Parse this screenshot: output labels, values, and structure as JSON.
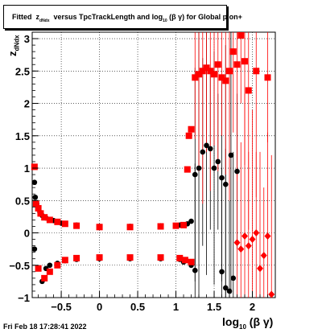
{
  "title": {
    "prefix": "Fitted",
    "var": "z",
    "var_sub": "dNdx",
    "middle": "versus TpcTrackLength and log",
    "log_sub": "10",
    "suffix": "(β γ) for Global pion+"
  },
  "ylabel": {
    "var": "z",
    "sub": "dNdx"
  },
  "xlabel": {
    "main": "log",
    "sub": "10",
    "rest": "(β γ)"
  },
  "datestamp": "Fri Feb 18 17:28:41 2022",
  "chart_data": {
    "type": "scatter",
    "xlim": [
      -0.88,
      2.3
    ],
    "ylim": [
      -1.0,
      3.1
    ],
    "x_ticks": [
      -0.5,
      0,
      0.5,
      1,
      1.5,
      2
    ],
    "x_tick_labels": [
      "−0.5",
      "0",
      "0.5",
      "1",
      "1.5",
      "2"
    ],
    "y_ticks": [
      -1,
      -0.5,
      0,
      0.5,
      1,
      1.5,
      2,
      2.5,
      3
    ],
    "y_tick_labels": [
      "−1",
      "−0.5",
      "0",
      "0.5",
      "1",
      "1.5",
      "2",
      "2.5",
      "3"
    ],
    "grid": true,
    "series": [
      {
        "color": "#000000",
        "marker": "circle",
        "points": [
          [
            -0.85,
            0.78
          ],
          [
            -0.84,
            0.55
          ],
          [
            -0.82,
            0.45
          ],
          [
            -0.8,
            0.38
          ],
          [
            -0.78,
            0.32
          ],
          [
            -0.75,
            0.27
          ],
          [
            -0.7,
            0.23
          ],
          [
            -0.6,
            0.19
          ],
          [
            -0.5,
            0.15
          ],
          [
            -0.3,
            0.12
          ],
          [
            0.0,
            0.1
          ],
          [
            0.4,
            0.1
          ],
          [
            0.8,
            0.11
          ],
          [
            1.05,
            0.12
          ],
          [
            1.15,
            0.14
          ],
          [
            1.2,
            0.18
          ],
          [
            1.25,
            0.9
          ],
          [
            1.3,
            1.0
          ],
          [
            1.35,
            1.25
          ],
          [
            1.4,
            1.35
          ],
          [
            1.45,
            1.3
          ],
          [
            1.5,
            1.0
          ],
          [
            1.55,
            1.1
          ],
          [
            1.6,
            0.85
          ],
          [
            1.65,
            0.75
          ],
          [
            1.72,
            1.2
          ],
          [
            1.8,
            0.95
          ],
          [
            -0.85,
            -0.25
          ],
          [
            -0.75,
            -0.75
          ],
          [
            -0.7,
            -0.55
          ],
          [
            -0.65,
            -0.5
          ],
          [
            -0.55,
            -0.47
          ],
          [
            -0.45,
            -0.43
          ],
          [
            -0.3,
            -0.41
          ],
          [
            0.0,
            -0.4
          ],
          [
            0.4,
            -0.4
          ],
          [
            0.8,
            -0.4
          ],
          [
            1.05,
            -0.41
          ],
          [
            1.1,
            -0.45
          ],
          [
            1.2,
            -0.5
          ],
          [
            1.25,
            -0.58
          ],
          [
            1.6,
            -0.6
          ],
          [
            1.65,
            -0.85
          ],
          [
            1.7,
            -0.9
          ],
          [
            1.75,
            -0.7
          ]
        ]
      },
      {
        "color": "#ff0000",
        "marker": "square",
        "points": [
          [
            -0.85,
            1.02
          ],
          [
            -0.83,
            0.45
          ],
          [
            -0.8,
            0.38
          ],
          [
            -0.77,
            0.3
          ],
          [
            -0.72,
            0.24
          ],
          [
            -0.65,
            0.2
          ],
          [
            -0.55,
            0.17
          ],
          [
            -0.45,
            0.14
          ],
          [
            -0.3,
            0.11
          ],
          [
            0.0,
            0.09
          ],
          [
            0.4,
            0.09
          ],
          [
            0.8,
            0.1
          ],
          [
            1.0,
            0.11
          ],
          [
            1.1,
            0.12
          ],
          [
            1.15,
            0.98
          ],
          [
            1.17,
            1.5
          ],
          [
            1.2,
            1.6
          ],
          [
            1.25,
            2.4
          ],
          [
            1.3,
            2.45
          ],
          [
            1.35,
            2.5
          ],
          [
            1.4,
            2.55
          ],
          [
            1.45,
            2.5
          ],
          [
            1.5,
            2.45
          ],
          [
            1.55,
            2.6
          ],
          [
            1.6,
            2.4
          ],
          [
            1.65,
            2.35
          ],
          [
            1.7,
            2.5
          ],
          [
            1.75,
            2.8
          ],
          [
            1.8,
            2.6
          ],
          [
            1.85,
            3.05
          ],
          [
            1.9,
            2.65
          ],
          [
            1.95,
            2.2
          ],
          [
            2.05,
            2.5
          ],
          [
            2.2,
            2.4
          ],
          [
            -0.8,
            -0.55
          ],
          [
            -0.72,
            -0.7
          ],
          [
            -0.65,
            -0.6
          ],
          [
            -0.55,
            -0.5
          ],
          [
            -0.45,
            -0.42
          ],
          [
            -0.3,
            -0.39
          ],
          [
            0.0,
            -0.38
          ],
          [
            0.4,
            -0.38
          ],
          [
            0.8,
            -0.38
          ],
          [
            1.05,
            -0.39
          ],
          [
            1.12,
            -0.42
          ],
          [
            1.2,
            -0.45
          ]
        ]
      },
      {
        "color": "#ff0000",
        "marker": "diamond",
        "points": [
          [
            1.8,
            -0.15
          ],
          [
            1.9,
            -0.05
          ],
          [
            1.95,
            -0.2
          ],
          [
            2.0,
            -0.1
          ],
          [
            2.05,
            0.0
          ],
          [
            2.1,
            -0.55
          ],
          [
            2.15,
            -0.35
          ],
          [
            2.2,
            -0.05
          ],
          [
            1.85,
            -0.25
          ],
          [
            2.25,
            -0.95
          ]
        ]
      }
    ]
  }
}
